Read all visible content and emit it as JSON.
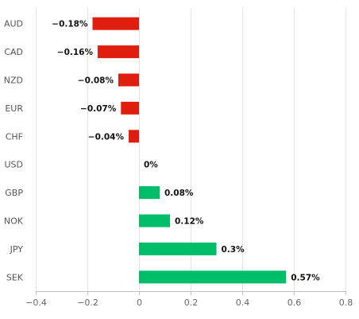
{
  "chart_data": {
    "type": "bar",
    "orientation": "horizontal",
    "categories": [
      "AUD",
      "CAD",
      "NZD",
      "EUR",
      "CHF",
      "USD",
      "GBP",
      "NOK",
      "JPY",
      "SEK"
    ],
    "values": [
      -0.18,
      -0.16,
      -0.08,
      -0.07,
      -0.04,
      0,
      0.08,
      0.12,
      0.3,
      0.57
    ],
    "value_labels": [
      "−0.18%",
      "−0.16%",
      "−0.08%",
      "−0.07%",
      "−0.04%",
      "0%",
      "0.08%",
      "0.12%",
      "0.3%",
      "0.57%"
    ],
    "xlim": [
      -0.4,
      0.8
    ],
    "xticks": [
      -0.4,
      -0.2,
      0,
      0.2,
      0.4,
      0.6,
      0.8
    ],
    "xtick_labels": [
      "−0.4",
      "−0.2",
      "0",
      "0.2",
      "0.4",
      "0.6",
      "0.8"
    ],
    "title": "",
    "xlabel": "",
    "ylabel": "",
    "grid": "vertical",
    "colors": {
      "negative": "#e01e0f",
      "positive": "#00bd6a",
      "grid": "#e4e4e4"
    }
  }
}
